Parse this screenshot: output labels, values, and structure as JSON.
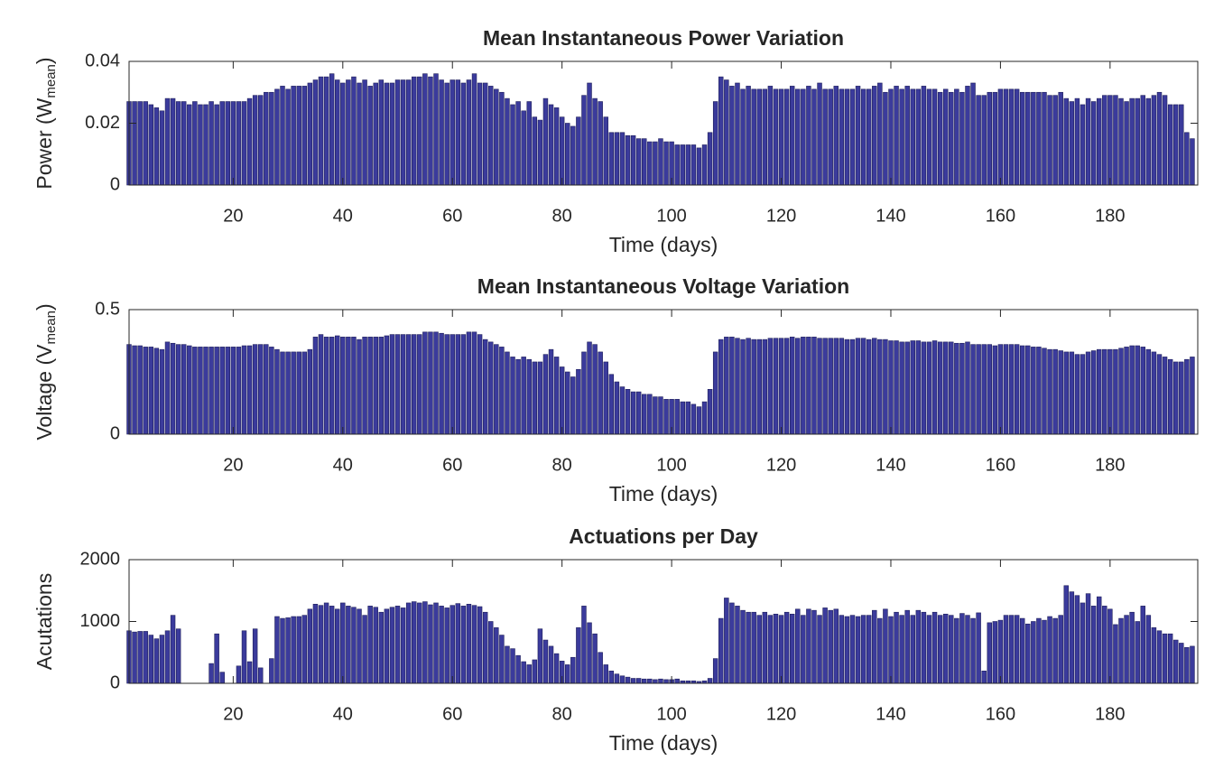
{
  "chart_data": [
    {
      "type": "bar",
      "title": "Mean Instantaneous Power Variation",
      "xlabel": "Time (days)",
      "ylabel": {
        "text": "Power (W",
        "sub": "mean",
        "end": ")"
      },
      "color": "#3b3b9c",
      "xlim": [
        1,
        196
      ],
      "xticks": [
        20,
        40,
        60,
        80,
        100,
        120,
        140,
        160,
        180
      ],
      "ylim": [
        0,
        0.04
      ],
      "yticks": [
        0,
        0.02,
        0.04
      ],
      "x": [
        1,
        2,
        3,
        4,
        5,
        6,
        7,
        8,
        9,
        10,
        11,
        12,
        13,
        14,
        15,
        16,
        17,
        18,
        19,
        20,
        21,
        22,
        23,
        24,
        25,
        26,
        27,
        28,
        29,
        30,
        31,
        32,
        33,
        34,
        35,
        36,
        37,
        38,
        39,
        40,
        41,
        42,
        43,
        44,
        45,
        46,
        47,
        48,
        49,
        50,
        51,
        52,
        53,
        54,
        55,
        56,
        57,
        58,
        59,
        60,
        61,
        62,
        63,
        64,
        65,
        66,
        67,
        68,
        69,
        70,
        71,
        72,
        73,
        74,
        75,
        76,
        77,
        78,
        79,
        80,
        81,
        82,
        83,
        84,
        85,
        86,
        87,
        88,
        89,
        90,
        91,
        92,
        93,
        94,
        95,
        96,
        97,
        98,
        99,
        100,
        101,
        102,
        103,
        104,
        105,
        106,
        107,
        108,
        109,
        110,
        111,
        112,
        113,
        114,
        115,
        116,
        117,
        118,
        119,
        120,
        121,
        122,
        123,
        124,
        125,
        126,
        127,
        128,
        129,
        130,
        131,
        132,
        133,
        134,
        135,
        136,
        137,
        138,
        139,
        140,
        141,
        142,
        143,
        144,
        145,
        146,
        147,
        148,
        149,
        150,
        151,
        152,
        153,
        154,
        155,
        156,
        157,
        158,
        159,
        160,
        161,
        162,
        163,
        164,
        165,
        166,
        167,
        168,
        169,
        170,
        171,
        172,
        173,
        174,
        175,
        176,
        177,
        178,
        179,
        180,
        181,
        182,
        183,
        184,
        185,
        186,
        187,
        188,
        189,
        190,
        191,
        192,
        193,
        194,
        195
      ],
      "values": [
        0.027,
        0.027,
        0.027,
        0.027,
        0.026,
        0.025,
        0.024,
        0.028,
        0.028,
        0.027,
        0.027,
        0.026,
        0.027,
        0.026,
        0.026,
        0.027,
        0.026,
        0.027,
        0.027,
        0.027,
        0.027,
        0.027,
        0.028,
        0.029,
        0.029,
        0.03,
        0.03,
        0.031,
        0.032,
        0.031,
        0.032,
        0.032,
        0.032,
        0.033,
        0.034,
        0.035,
        0.035,
        0.036,
        0.034,
        0.033,
        0.034,
        0.035,
        0.033,
        0.034,
        0.032,
        0.033,
        0.034,
        0.033,
        0.033,
        0.034,
        0.034,
        0.034,
        0.035,
        0.035,
        0.036,
        0.035,
        0.036,
        0.034,
        0.033,
        0.034,
        0.034,
        0.033,
        0.034,
        0.036,
        0.033,
        0.033,
        0.032,
        0.031,
        0.03,
        0.028,
        0.026,
        0.027,
        0.024,
        0.027,
        0.022,
        0.021,
        0.028,
        0.026,
        0.025,
        0.022,
        0.02,
        0.019,
        0.022,
        0.029,
        0.033,
        0.028,
        0.027,
        0.022,
        0.017,
        0.017,
        0.017,
        0.016,
        0.016,
        0.015,
        0.015,
        0.014,
        0.014,
        0.015,
        0.014,
        0.014,
        0.013,
        0.013,
        0.013,
        0.013,
        0.012,
        0.013,
        0.017,
        0.027,
        0.035,
        0.034,
        0.032,
        0.033,
        0.031,
        0.032,
        0.031,
        0.031,
        0.031,
        0.032,
        0.031,
        0.031,
        0.031,
        0.032,
        0.031,
        0.031,
        0.032,
        0.031,
        0.033,
        0.031,
        0.031,
        0.032,
        0.031,
        0.031,
        0.031,
        0.032,
        0.031,
        0.031,
        0.032,
        0.033,
        0.03,
        0.031,
        0.032,
        0.031,
        0.032,
        0.031,
        0.031,
        0.032,
        0.031,
        0.031,
        0.03,
        0.031,
        0.03,
        0.031,
        0.03,
        0.032,
        0.033,
        0.029,
        0.029,
        0.03,
        0.03,
        0.031,
        0.031,
        0.031,
        0.031,
        0.03,
        0.03,
        0.03,
        0.03,
        0.03,
        0.029,
        0.029,
        0.03,
        0.028,
        0.027,
        0.028,
        0.026,
        0.028,
        0.027,
        0.028,
        0.029,
        0.029,
        0.029,
        0.028,
        0.027,
        0.028,
        0.028,
        0.029,
        0.028,
        0.029,
        0.03,
        0.029,
        0.026,
        0.026,
        0.026,
        0.017,
        0.015
      ]
    },
    {
      "type": "bar",
      "title": "Mean Instantaneous Voltage Variation",
      "xlabel": "Time (days)",
      "ylabel": {
        "text": "Voltage (V",
        "sub": "mean",
        "end": ")"
      },
      "color": "#3b3b9c",
      "xlim": [
        1,
        196
      ],
      "xticks": [
        20,
        40,
        60,
        80,
        100,
        120,
        140,
        160,
        180
      ],
      "ylim": [
        0,
        0.5
      ],
      "yticks": [
        0,
        0.5
      ],
      "x": [
        1,
        2,
        3,
        4,
        5,
        6,
        7,
        8,
        9,
        10,
        11,
        12,
        13,
        14,
        15,
        16,
        17,
        18,
        19,
        20,
        21,
        22,
        23,
        24,
        25,
        26,
        27,
        28,
        29,
        30,
        31,
        32,
        33,
        34,
        35,
        36,
        37,
        38,
        39,
        40,
        41,
        42,
        43,
        44,
        45,
        46,
        47,
        48,
        49,
        50,
        51,
        52,
        53,
        54,
        55,
        56,
        57,
        58,
        59,
        60,
        61,
        62,
        63,
        64,
        65,
        66,
        67,
        68,
        69,
        70,
        71,
        72,
        73,
        74,
        75,
        76,
        77,
        78,
        79,
        80,
        81,
        82,
        83,
        84,
        85,
        86,
        87,
        88,
        89,
        90,
        91,
        92,
        93,
        94,
        95,
        96,
        97,
        98,
        99,
        100,
        101,
        102,
        103,
        104,
        105,
        106,
        107,
        108,
        109,
        110,
        111,
        112,
        113,
        114,
        115,
        116,
        117,
        118,
        119,
        120,
        121,
        122,
        123,
        124,
        125,
        126,
        127,
        128,
        129,
        130,
        131,
        132,
        133,
        134,
        135,
        136,
        137,
        138,
        139,
        140,
        141,
        142,
        143,
        144,
        145,
        146,
        147,
        148,
        149,
        150,
        151,
        152,
        153,
        154,
        155,
        156,
        157,
        158,
        159,
        160,
        161,
        162,
        163,
        164,
        165,
        166,
        167,
        168,
        169,
        170,
        171,
        172,
        173,
        174,
        175,
        176,
        177,
        178,
        179,
        180,
        181,
        182,
        183,
        184,
        185,
        186,
        187,
        188,
        189,
        190,
        191,
        192,
        193,
        194,
        195
      ],
      "values": [
        0.36,
        0.355,
        0.355,
        0.35,
        0.35,
        0.345,
        0.34,
        0.37,
        0.365,
        0.36,
        0.36,
        0.355,
        0.35,
        0.35,
        0.35,
        0.35,
        0.35,
        0.35,
        0.35,
        0.35,
        0.35,
        0.355,
        0.355,
        0.36,
        0.36,
        0.36,
        0.35,
        0.34,
        0.33,
        0.33,
        0.33,
        0.33,
        0.33,
        0.34,
        0.39,
        0.4,
        0.39,
        0.39,
        0.395,
        0.39,
        0.39,
        0.39,
        0.38,
        0.39,
        0.39,
        0.39,
        0.39,
        0.395,
        0.4,
        0.4,
        0.4,
        0.4,
        0.4,
        0.4,
        0.41,
        0.41,
        0.41,
        0.405,
        0.4,
        0.4,
        0.4,
        0.4,
        0.41,
        0.41,
        0.4,
        0.38,
        0.37,
        0.36,
        0.35,
        0.33,
        0.31,
        0.3,
        0.31,
        0.3,
        0.29,
        0.29,
        0.32,
        0.34,
        0.31,
        0.27,
        0.25,
        0.23,
        0.26,
        0.33,
        0.37,
        0.36,
        0.33,
        0.29,
        0.24,
        0.21,
        0.19,
        0.18,
        0.17,
        0.17,
        0.16,
        0.16,
        0.15,
        0.15,
        0.14,
        0.14,
        0.14,
        0.13,
        0.13,
        0.12,
        0.11,
        0.13,
        0.18,
        0.33,
        0.38,
        0.39,
        0.39,
        0.385,
        0.38,
        0.385,
        0.38,
        0.38,
        0.38,
        0.385,
        0.385,
        0.385,
        0.385,
        0.39,
        0.385,
        0.39,
        0.39,
        0.39,
        0.385,
        0.385,
        0.385,
        0.385,
        0.385,
        0.38,
        0.38,
        0.385,
        0.385,
        0.38,
        0.385,
        0.38,
        0.38,
        0.375,
        0.375,
        0.37,
        0.37,
        0.375,
        0.375,
        0.37,
        0.37,
        0.375,
        0.37,
        0.37,
        0.37,
        0.365,
        0.365,
        0.37,
        0.36,
        0.36,
        0.36,
        0.36,
        0.355,
        0.36,
        0.36,
        0.36,
        0.36,
        0.355,
        0.355,
        0.35,
        0.35,
        0.345,
        0.34,
        0.34,
        0.335,
        0.33,
        0.33,
        0.32,
        0.32,
        0.33,
        0.335,
        0.34,
        0.34,
        0.34,
        0.34,
        0.345,
        0.35,
        0.355,
        0.355,
        0.35,
        0.34,
        0.33,
        0.32,
        0.31,
        0.3,
        0.29,
        0.29,
        0.3,
        0.31
      ]
    },
    {
      "type": "bar",
      "title": "Actuations per Day",
      "xlabel": "Time (days)",
      "ylabel": {
        "text": "Acutations"
      },
      "color": "#3b3b9c",
      "xlim": [
        1,
        196
      ],
      "xticks": [
        20,
        40,
        60,
        80,
        100,
        120,
        140,
        160,
        180
      ],
      "ylim": [
        0,
        2000
      ],
      "yticks": [
        0,
        1000,
        2000
      ],
      "x": [
        1,
        2,
        3,
        4,
        5,
        6,
        7,
        8,
        9,
        10,
        11,
        12,
        13,
        14,
        15,
        16,
        17,
        18,
        19,
        20,
        21,
        22,
        23,
        24,
        25,
        26,
        27,
        28,
        29,
        30,
        31,
        32,
        33,
        34,
        35,
        36,
        37,
        38,
        39,
        40,
        41,
        42,
        43,
        44,
        45,
        46,
        47,
        48,
        49,
        50,
        51,
        52,
        53,
        54,
        55,
        56,
        57,
        58,
        59,
        60,
        61,
        62,
        63,
        64,
        65,
        66,
        67,
        68,
        69,
        70,
        71,
        72,
        73,
        74,
        75,
        76,
        77,
        78,
        79,
        80,
        81,
        82,
        83,
        84,
        85,
        86,
        87,
        88,
        89,
        90,
        91,
        92,
        93,
        94,
        95,
        96,
        97,
        98,
        99,
        100,
        101,
        102,
        103,
        104,
        105,
        106,
        107,
        108,
        109,
        110,
        111,
        112,
        113,
        114,
        115,
        116,
        117,
        118,
        119,
        120,
        121,
        122,
        123,
        124,
        125,
        126,
        127,
        128,
        129,
        130,
        131,
        132,
        133,
        134,
        135,
        136,
        137,
        138,
        139,
        140,
        141,
        142,
        143,
        144,
        145,
        146,
        147,
        148,
        149,
        150,
        151,
        152,
        153,
        154,
        155,
        156,
        157,
        158,
        159,
        160,
        161,
        162,
        163,
        164,
        165,
        166,
        167,
        168,
        169,
        170,
        171,
        172,
        173,
        174,
        175,
        176,
        177,
        178,
        179,
        180,
        181,
        182,
        183,
        184,
        185,
        186,
        187,
        188,
        189,
        190,
        191,
        192,
        193,
        194,
        195
      ],
      "values": [
        850,
        830,
        840,
        840,
        780,
        720,
        780,
        850,
        1100,
        880,
        0,
        0,
        0,
        0,
        0,
        320,
        800,
        180,
        0,
        0,
        280,
        850,
        350,
        880,
        250,
        0,
        400,
        1080,
        1050,
        1060,
        1080,
        1080,
        1100,
        1200,
        1280,
        1260,
        1300,
        1250,
        1200,
        1300,
        1250,
        1230,
        1200,
        1100,
        1250,
        1230,
        1150,
        1200,
        1230,
        1250,
        1220,
        1300,
        1320,
        1300,
        1320,
        1270,
        1300,
        1250,
        1220,
        1260,
        1290,
        1250,
        1280,
        1260,
        1240,
        1150,
        1000,
        900,
        780,
        600,
        560,
        450,
        350,
        300,
        380,
        880,
        700,
        600,
        480,
        360,
        300,
        420,
        900,
        1250,
        980,
        800,
        500,
        300,
        200,
        150,
        120,
        100,
        80,
        80,
        70,
        70,
        60,
        70,
        60,
        60,
        70,
        40,
        40,
        40,
        30,
        40,
        80,
        400,
        1050,
        1380,
        1300,
        1250,
        1180,
        1150,
        1150,
        1100,
        1150,
        1100,
        1120,
        1100,
        1150,
        1120,
        1200,
        1100,
        1200,
        1180,
        1100,
        1220,
        1180,
        1200,
        1100,
        1080,
        1100,
        1080,
        1100,
        1100,
        1180,
        1050,
        1200,
        1080,
        1150,
        1100,
        1180,
        1100,
        1180,
        1150,
        1100,
        1150,
        1100,
        1120,
        1100,
        1050,
        1130,
        1100,
        1050,
        1140,
        200,
        980,
        1000,
        1020,
        1100,
        1100,
        1100,
        1050,
        960,
        1000,
        1050,
        1020,
        1080,
        1050,
        1100,
        1580,
        1480,
        1420,
        1300,
        1450,
        1250,
        1400,
        1250,
        1200,
        950,
        1050,
        1100,
        1150,
        1000,
        1250,
        1100,
        900,
        850,
        800,
        800,
        700,
        650,
        580,
        600
      ]
    }
  ]
}
